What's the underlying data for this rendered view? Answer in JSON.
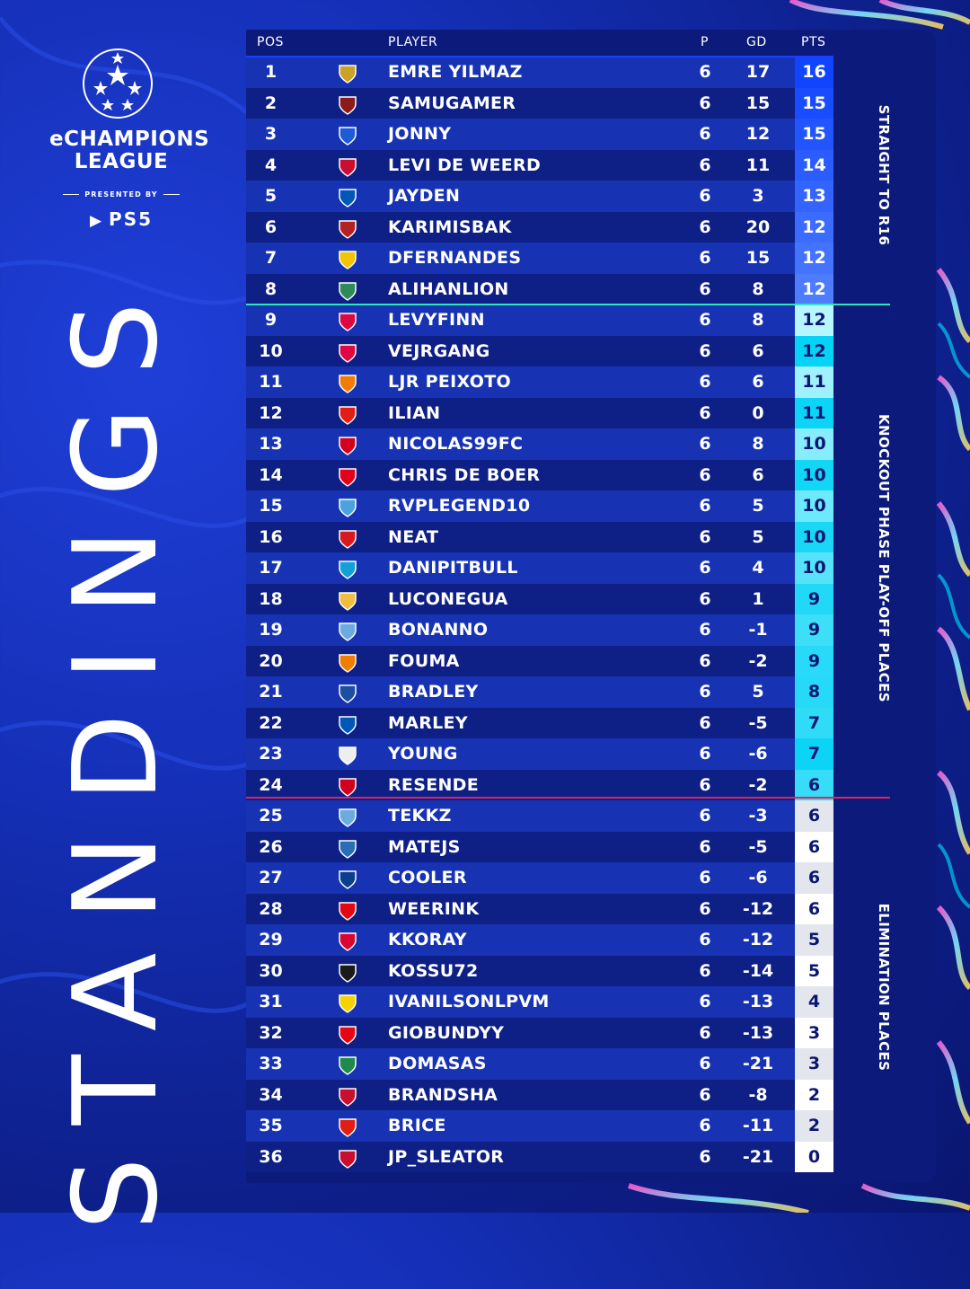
{
  "brand": {
    "line1": "eCHAMPIONS",
    "line2": "LEAGUE",
    "presented_by": "PRESENTED BY",
    "sponsor": "PS5",
    "ball_icon": "starball-icon",
    "sponsor_icon": "playstation-icon"
  },
  "title": "STANDINGS",
  "table": {
    "headers": {
      "pos": "POS",
      "player": "PLAYER",
      "p": "P",
      "gd": "GD",
      "pts": "PTS"
    },
    "rows": [
      {
        "pos": "1",
        "player": "EMRE YILMAZ",
        "p": "6",
        "gd": "17",
        "pts": "16",
        "crest": "#c9a227",
        "zone": "r16"
      },
      {
        "pos": "2",
        "player": "SAMUGAMER",
        "p": "6",
        "gd": "15",
        "pts": "15",
        "crest": "#8b1a1a",
        "zone": "r16"
      },
      {
        "pos": "3",
        "player": "JONNY",
        "p": "6",
        "gd": "12",
        "pts": "15",
        "crest": "#1e5bd6",
        "zone": "r16"
      },
      {
        "pos": "4",
        "player": "LEVI DE WEERD",
        "p": "6",
        "gd": "11",
        "pts": "14",
        "crest": "#c8102e",
        "zone": "r16"
      },
      {
        "pos": "5",
        "player": "JAYDEN",
        "p": "6",
        "gd": "3",
        "pts": "13",
        "crest": "#0057b8",
        "zone": "r16"
      },
      {
        "pos": "6",
        "player": "KARIMISBAK",
        "p": "6",
        "gd": "20",
        "pts": "12",
        "crest": "#b22222",
        "zone": "r16"
      },
      {
        "pos": "7",
        "player": "DFERNANDES",
        "p": "6",
        "gd": "15",
        "pts": "12",
        "crest": "#f2c500",
        "zone": "r16"
      },
      {
        "pos": "8",
        "player": "ALIHANLION",
        "p": "6",
        "gd": "8",
        "pts": "12",
        "crest": "#2e8b57",
        "zone": "r16"
      },
      {
        "pos": "9",
        "player": "LEVYFINN",
        "p": "6",
        "gd": "8",
        "pts": "12",
        "crest": "#dd0741",
        "zone": "playoff"
      },
      {
        "pos": "10",
        "player": "VEJRGANG",
        "p": "6",
        "gd": "6",
        "pts": "12",
        "crest": "#dd0741",
        "zone": "playoff"
      },
      {
        "pos": "11",
        "player": "LJR PEIXOTO",
        "p": "6",
        "gd": "6",
        "pts": "11",
        "crest": "#f07d00",
        "zone": "playoff"
      },
      {
        "pos": "12",
        "player": "ILIAN",
        "p": "6",
        "gd": "0",
        "pts": "11",
        "crest": "#e01e13",
        "zone": "playoff"
      },
      {
        "pos": "13",
        "player": "NICOLAS99FC",
        "p": "6",
        "gd": "8",
        "pts": "10",
        "crest": "#d4001e",
        "zone": "playoff"
      },
      {
        "pos": "14",
        "player": "CHRIS DE BOER",
        "p": "6",
        "gd": "6",
        "pts": "10",
        "crest": "#e3001b",
        "zone": "playoff"
      },
      {
        "pos": "15",
        "player": "RVPLEGEND10",
        "p": "6",
        "gd": "5",
        "pts": "10",
        "crest": "#4aa3df",
        "zone": "playoff"
      },
      {
        "pos": "16",
        "player": "NEAT",
        "p": "6",
        "gd": "5",
        "pts": "10",
        "crest": "#d71920",
        "zone": "playoff"
      },
      {
        "pos": "17",
        "player": "DANIPITBULL",
        "p": "6",
        "gd": "4",
        "pts": "10",
        "crest": "#12a0d7",
        "zone": "playoff"
      },
      {
        "pos": "18",
        "player": "LUCONEGUA",
        "p": "6",
        "gd": "1",
        "pts": "9",
        "crest": "#f0bc42",
        "zone": "playoff"
      },
      {
        "pos": "19",
        "player": "BONANNO",
        "p": "6",
        "gd": "-1",
        "pts": "9",
        "crest": "#6cabdd",
        "zone": "playoff"
      },
      {
        "pos": "20",
        "player": "FOUMA",
        "p": "6",
        "gd": "-2",
        "pts": "9",
        "crest": "#f07d00",
        "zone": "playoff"
      },
      {
        "pos": "21",
        "player": "BRADLEY",
        "p": "6",
        "gd": "5",
        "pts": "8",
        "crest": "#1c4ea1",
        "zone": "playoff"
      },
      {
        "pos": "22",
        "player": "MARLEY",
        "p": "6",
        "gd": "-5",
        "pts": "7",
        "crest": "#0057b8",
        "zone": "playoff"
      },
      {
        "pos": "23",
        "player": "YOUNG",
        "p": "6",
        "gd": "-6",
        "pts": "7",
        "crest": "#eeeeee",
        "zone": "playoff"
      },
      {
        "pos": "24",
        "player": "RESENDE",
        "p": "6",
        "gd": "-2",
        "pts": "6",
        "crest": "#d2001f",
        "zone": "playoff"
      },
      {
        "pos": "25",
        "player": "TEKKZ",
        "p": "6",
        "gd": "-3",
        "pts": "6",
        "crest": "#6cabdd",
        "zone": "elim"
      },
      {
        "pos": "26",
        "player": "MATEJS",
        "p": "6",
        "gd": "-5",
        "pts": "6",
        "crest": "#2a6fb6",
        "zone": "elim"
      },
      {
        "pos": "27",
        "player": "COOLER",
        "p": "6",
        "gd": "-6",
        "pts": "6",
        "crest": "#0a3e8f",
        "zone": "elim"
      },
      {
        "pos": "28",
        "player": "WEERINK",
        "p": "6",
        "gd": "-12",
        "pts": "6",
        "crest": "#e30613",
        "zone": "elim"
      },
      {
        "pos": "29",
        "player": "KKORAY",
        "p": "6",
        "gd": "-12",
        "pts": "5",
        "crest": "#dc052d",
        "zone": "elim"
      },
      {
        "pos": "30",
        "player": "KOSSU72",
        "p": "6",
        "gd": "-14",
        "pts": "5",
        "crest": "#1a1a1a",
        "zone": "elim"
      },
      {
        "pos": "31",
        "player": "IVANILSONLPVM",
        "p": "6",
        "gd": "-13",
        "pts": "4",
        "crest": "#f5d300",
        "zone": "elim"
      },
      {
        "pos": "32",
        "player": "GIOBUNDYY",
        "p": "6",
        "gd": "-13",
        "pts": "3",
        "crest": "#e30613",
        "zone": "elim"
      },
      {
        "pos": "33",
        "player": "DOMASAS",
        "p": "6",
        "gd": "-21",
        "pts": "3",
        "crest": "#1f8a4c",
        "zone": "elim"
      },
      {
        "pos": "34",
        "player": "BRANDSHA",
        "p": "6",
        "gd": "-8",
        "pts": "2",
        "crest": "#c8102e",
        "zone": "elim"
      },
      {
        "pos": "35",
        "player": "BRICE",
        "p": "6",
        "gd": "-11",
        "pts": "2",
        "crest": "#e01e13",
        "zone": "elim"
      },
      {
        "pos": "36",
        "player": "JP_SLEATOR",
        "p": "6",
        "gd": "-21",
        "pts": "0",
        "crest": "#c8102e",
        "zone": "elim"
      }
    ]
  },
  "zones": {
    "r16": "STRAIGHT TO R16",
    "playoff": "KNOCKOUT PHASE PLAY-OFF PLACES",
    "elim": "ELIMINATION PLACES"
  },
  "colors": {
    "background": "#1530b8",
    "row_light": "#1733b3",
    "row_dark": "#0e1f85",
    "r16_divider": "#2ee6c0",
    "elim_divider": "#e0245e",
    "pts_r16_top": "#1144ff",
    "pts_r16_bottom": "#4d7cff",
    "pts_playoff_top": "#b8f6ff",
    "pts_playoff_bottom": "#00d2f5",
    "pts_elim_a": "#e4e6ee",
    "pts_elim_b": "#ffffff"
  }
}
